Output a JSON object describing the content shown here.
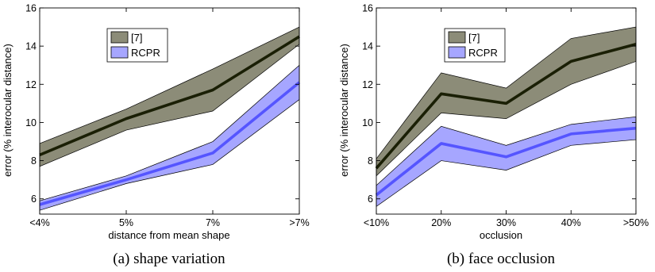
{
  "chart_data": [
    {
      "type": "area",
      "caption": "(a) shape variation",
      "xlabel": "distance from mean shape",
      "ylabel": "error (% interocular distance)",
      "categories": [
        "<4%",
        "5%",
        "7%",
        ">7%"
      ],
      "ylim": [
        5.2,
        16
      ],
      "yticks": [
        6,
        8,
        10,
        12,
        14,
        16
      ],
      "legend_position": "top-left",
      "series": [
        {
          "name": "[7]",
          "mean": [
            8.3,
            10.2,
            11.7,
            14.5
          ],
          "upper": [
            8.9,
            10.7,
            12.8,
            15.0
          ],
          "lower": [
            7.7,
            9.6,
            10.6,
            14.1
          ],
          "line_color": "#1a1f05",
          "fill_color": "#8c8c78"
        },
        {
          "name": "RCPR",
          "mean": [
            5.7,
            7.0,
            8.4,
            12.1
          ],
          "upper": [
            5.9,
            7.2,
            9.0,
            13.0
          ],
          "lower": [
            5.4,
            6.8,
            7.8,
            11.2
          ],
          "line_color": "#5555ff",
          "fill_color": "#a6a6ff"
        }
      ]
    },
    {
      "type": "area",
      "caption": "(b) face occlusion",
      "xlabel": "occlusion",
      "ylabel": "error (% interocular distance)",
      "categories": [
        "<10%",
        "20%",
        "30%",
        "40%",
        ">50%"
      ],
      "ylim": [
        5.2,
        16
      ],
      "yticks": [
        6,
        8,
        10,
        12,
        14,
        16
      ],
      "legend_position": "top-left",
      "series": [
        {
          "name": "[7]",
          "mean": [
            7.6,
            11.5,
            11.0,
            13.2,
            14.1
          ],
          "upper": [
            8.1,
            12.6,
            11.8,
            14.4,
            15.0
          ],
          "lower": [
            7.2,
            10.5,
            10.2,
            12.0,
            13.2
          ],
          "line_color": "#1a1f05",
          "fill_color": "#8c8c78"
        },
        {
          "name": "RCPR",
          "mean": [
            6.2,
            8.9,
            8.2,
            9.4,
            9.7
          ],
          "upper": [
            6.7,
            9.8,
            8.8,
            9.9,
            10.3
          ],
          "lower": [
            5.6,
            8.0,
            7.5,
            8.8,
            9.1
          ],
          "line_color": "#5555ff",
          "fill_color": "#a6a6ff"
        }
      ]
    }
  ]
}
